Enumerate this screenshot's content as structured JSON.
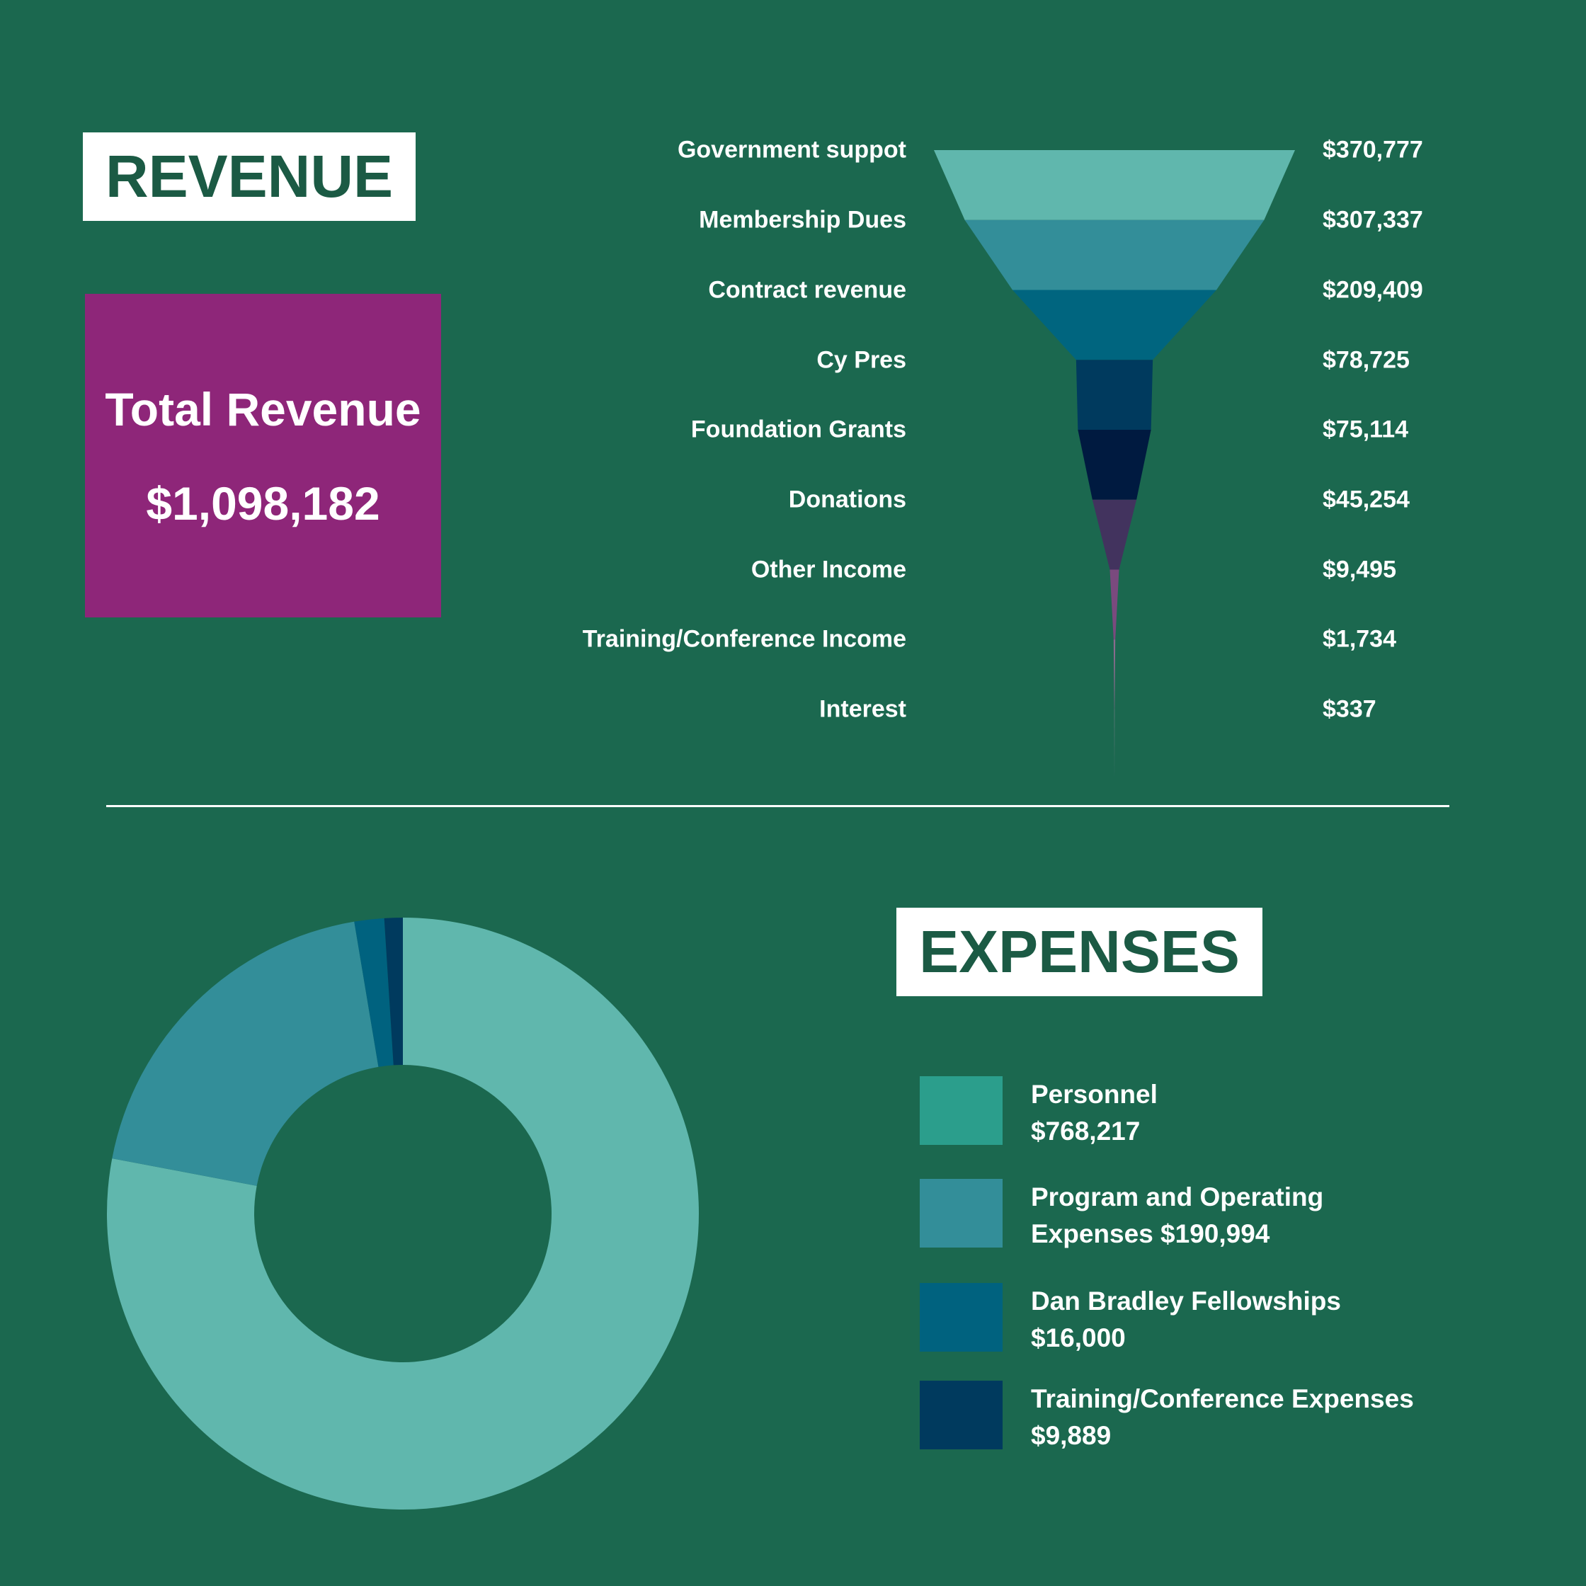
{
  "revenue_title": "REVENUE",
  "expenses_title": "EXPENSES",
  "total": {
    "label": "Total Revenue",
    "value": "$1,098,182"
  },
  "funnel_labels": [
    {
      "label": "Government suppot",
      "value_text": "$370,777"
    },
    {
      "label": "Membership Dues",
      "value_text": "$307,337"
    },
    {
      "label": "Contract revenue",
      "value_text": "$209,409"
    },
    {
      "label": "Cy Pres",
      "value_text": "$78,725"
    },
    {
      "label": "Foundation Grants",
      "value_text": "$75,114"
    },
    {
      "label": "Donations",
      "value_text": "$45,254"
    },
    {
      "label": "Other Income",
      "value_text": "$9,495"
    },
    {
      "label": "Training/Conference Income",
      "value_text": "$1,734"
    },
    {
      "label": "Interest",
      "value_text": "$337"
    }
  ],
  "legend": [
    {
      "line1": "Personnel",
      "line2": "$768,217",
      "color": "#2b9e8c"
    },
    {
      "line1": "Program and Operating",
      "line2": "Expenses $190,994",
      "color": "#338e99"
    },
    {
      "line1": "Dan Bradley Fellowships",
      "line2": "$16,000",
      "color": "#00627f"
    },
    {
      "line1": "Training/Conference Expenses",
      "line2": "$9,889",
      "color": "#003a5e"
    }
  ],
  "chart_data": [
    {
      "type": "funnel",
      "categories": [
        "Government suppot",
        "Membership Dues",
        "Contract revenue",
        "Cy Pres",
        "Foundation Grants",
        "Donations",
        "Other Income",
        "Training/Conference Income",
        "Interest"
      ],
      "values": [
        370777,
        307337,
        209409,
        78725,
        75114,
        45254,
        9495,
        1734,
        337
      ],
      "colors": [
        "#60b7ad",
        "#338e99",
        "#00657f",
        "#003a5e",
        "#001a40",
        "#42335e",
        "#7a4a7e",
        "#8a6a8e",
        "#9a8a9e"
      ]
    },
    {
      "type": "pie",
      "donut": true,
      "categories": [
        "Personnel",
        "Program and Operating Expenses",
        "Dan Bradley Fellowships",
        "Training/Conference Expenses"
      ],
      "values": [
        768217,
        190994,
        16000,
        9889
      ],
      "colors": [
        "#60b7ad",
        "#338e99",
        "#00627f",
        "#003a5e"
      ]
    }
  ]
}
